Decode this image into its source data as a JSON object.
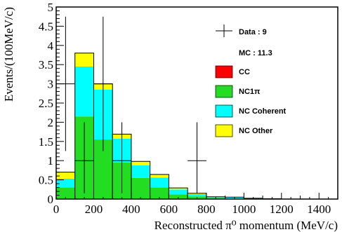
{
  "chart_data": {
    "type": "bar",
    "stacked": true,
    "xlabel": "Reconstructed π⁰ momentum (MeV/c)",
    "ylabel": "Events/(100MeV/c)",
    "xlim": [
      0,
      1500
    ],
    "ylim": [
      0,
      5
    ],
    "x_ticks": [
      0,
      200,
      400,
      600,
      800,
      1000,
      1200,
      1400
    ],
    "y_ticks": [
      0,
      0.5,
      1,
      1.5,
      2,
      2.5,
      3,
      3.5,
      4,
      4.5,
      5
    ],
    "bins": [
      [
        0,
        100
      ],
      [
        100,
        200
      ],
      [
        200,
        300
      ],
      [
        300,
        400
      ],
      [
        400,
        500
      ],
      [
        500,
        600
      ],
      [
        600,
        700
      ],
      [
        700,
        800
      ],
      [
        800,
        900
      ],
      [
        900,
        1000
      ],
      [
        1000,
        1100
      ],
      [
        1100,
        1200
      ],
      [
        1200,
        1300
      ],
      [
        1300,
        1400
      ],
      [
        1400,
        1500
      ]
    ],
    "series": [
      {
        "name": "CC",
        "color": "#ff0000",
        "values": [
          0,
          0,
          0,
          0,
          0,
          0,
          0,
          0,
          0,
          0,
          0,
          0,
          0,
          0,
          0
        ]
      },
      {
        "name": "NC1π",
        "color": "#22dd22",
        "values": [
          0.3,
          2.15,
          1.55,
          0.95,
          0.55,
          0.3,
          0.12,
          0.07,
          0.03,
          0.02,
          0.01,
          0.01,
          0,
          0,
          0
        ]
      },
      {
        "name": "NC Coherent",
        "color": "#00ffff",
        "values": [
          0.23,
          1.3,
          1.3,
          0.62,
          0.33,
          0.26,
          0.13,
          0.06,
          0.02,
          0.02,
          0.01,
          0,
          0,
          0,
          0
        ]
      },
      {
        "name": "NC Other",
        "color": "#ffff00",
        "values": [
          0.17,
          0.35,
          0.15,
          0.12,
          0.1,
          0.08,
          0.04,
          0.02,
          0.01,
          0.01,
          0,
          0,
          0,
          0,
          0
        ]
      }
    ],
    "data_points": {
      "name": "Data",
      "points": [
        {
          "x": 50,
          "y": 3.0,
          "ylo": 1.25,
          "yhi": 4.75
        },
        {
          "x": 150,
          "y": 1.0,
          "ylo": 0.15,
          "yhi": 2.0
        },
        {
          "x": 250,
          "y": 3.0,
          "ylo": 1.25,
          "yhi": 4.75
        },
        {
          "x": 350,
          "y": 1.0,
          "ylo": 0.15,
          "yhi": 2.0
        },
        {
          "x": 750,
          "y": 1.0,
          "ylo": 0.15,
          "yhi": 2.0
        }
      ]
    },
    "legend": {
      "data_label": "Data : 9",
      "mc_label": "MC : 11.3",
      "entries": [
        {
          "label": "CC",
          "color": "#ff0000"
        },
        {
          "label": "NC1π",
          "color": "#22dd22"
        },
        {
          "label": "NC Coherent",
          "color": "#00ffff"
        },
        {
          "label": "NC Other",
          "color": "#ffff00"
        }
      ],
      "position": "top-right"
    },
    "grid": false
  }
}
